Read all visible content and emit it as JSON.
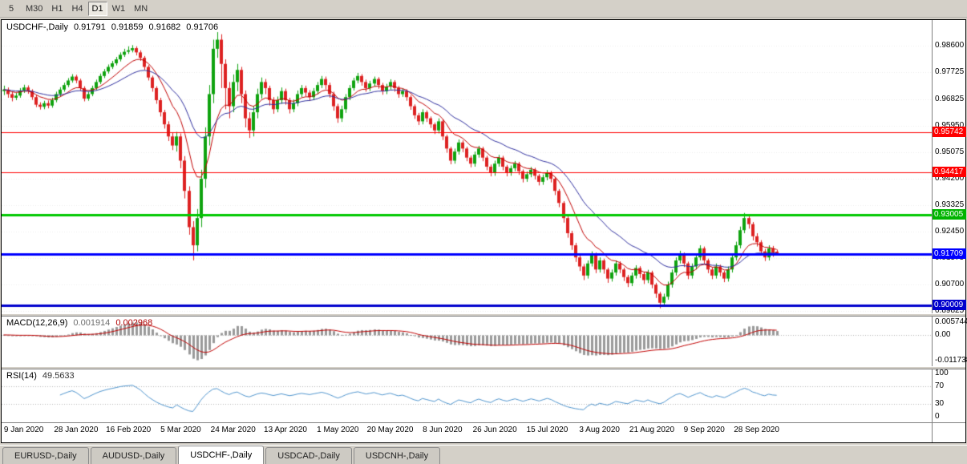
{
  "toolbar": {
    "buttons": [
      {
        "label": "5",
        "active": false
      },
      {
        "label": "M30",
        "active": false
      },
      {
        "label": "H1",
        "active": false
      },
      {
        "label": "H4",
        "active": false
      },
      {
        "label": "D1",
        "active": true
      },
      {
        "label": "W1",
        "active": false
      },
      {
        "label": "MN",
        "active": false
      }
    ]
  },
  "chart": {
    "title": "USDCHF-,Daily",
    "ohlc": {
      "open": "0.91791",
      "high": "0.91859",
      "low": "0.91682",
      "close": "0.91706"
    }
  },
  "price_axis": {
    "labels": [
      "0.98600",
      "0.97725",
      "0.96825",
      "0.95950",
      "0.95075",
      "0.94200",
      "0.93325",
      "0.92450",
      "0.91575",
      "0.90700",
      "0.89825"
    ],
    "tags": [
      {
        "value": "0.95742",
        "color": "#ff0000"
      },
      {
        "value": "0.94417",
        "color": "#ff0000"
      },
      {
        "value": "0.93005",
        "color": "#00b400"
      },
      {
        "value": "0.91709",
        "color": "#0000ff"
      },
      {
        "value": "0.90009",
        "color": "#0000cd"
      }
    ]
  },
  "macd": {
    "label": "MACD(12,26,9)",
    "value": "0.001914",
    "signal": "0.002968",
    "axis": [
      "0.005744",
      "0.00",
      "-0.011738"
    ]
  },
  "rsi": {
    "label": "RSI(14)",
    "value": "49.5633",
    "axis": [
      "100",
      "70",
      "30",
      "0"
    ]
  },
  "tabs": [
    {
      "label": "EURUSD-,Daily",
      "active": false
    },
    {
      "label": "AUDUSD-,Daily",
      "active": false
    },
    {
      "label": "USDCHF-,Daily",
      "active": true
    },
    {
      "label": "USDCAD-,Daily",
      "active": false
    },
    {
      "label": "USDCNH-,Daily",
      "active": false
    }
  ],
  "chart_data": {
    "type": "candlestick",
    "symbol": "USDCHF",
    "timeframe": "Daily",
    "title": "USDCHF-,Daily 0.91791 0.91859 0.91682 0.91706",
    "total_slots": 231,
    "price_scale": {
      "top": 0.9945,
      "bottom": 0.8975
    },
    "macd_scale": {
      "top": 0.0085,
      "bottom": -0.0145
    },
    "ma": {
      "fast": 10,
      "slow": 24
    },
    "colors": {
      "bull": "#0fa30f",
      "bear": "#dd2222",
      "ma_fast": "#c00000",
      "ma_slow": "#2f2f9e",
      "macd_hist": "#9a9a9a",
      "macd_signal": "#c00000",
      "rsi_line": "#4f94cd",
      "hline_red": "#ff0000",
      "hline_green": "#00c800",
      "hline_blue": "#0000ff"
    },
    "hlines": [
      {
        "price": 0.95742,
        "color": "#ff0000",
        "width": 1
      },
      {
        "price": 0.94417,
        "color": "#ff0000",
        "width": 1
      },
      {
        "price": 0.93005,
        "color": "#00c800",
        "width": 3
      },
      {
        "price": 0.91709,
        "color": "#0000ff",
        "width": 3
      },
      {
        "price": 0.90009,
        "color": "#0000cd",
        "width": 3
      }
    ],
    "indicator_levels": {
      "macd": [
        0.005744,
        0,
        -0.011738
      ],
      "rsi": [
        100,
        70,
        30,
        0
      ]
    },
    "date_labels": [
      {
        "text": "9 Jan 2020",
        "bar": 5
      },
      {
        "text": "28 Jan 2020",
        "bar": 18
      },
      {
        "text": "16 Feb 2020",
        "bar": 31
      },
      {
        "text": "5 Mar 2020",
        "bar": 44
      },
      {
        "text": "24 Mar 2020",
        "bar": 57
      },
      {
        "text": "13 Apr 2020",
        "bar": 70
      },
      {
        "text": "1 May 2020",
        "bar": 83
      },
      {
        "text": "20 May 2020",
        "bar": 96
      },
      {
        "text": "8 Jun 2020",
        "bar": 109
      },
      {
        "text": "26 Jun 2020",
        "bar": 122
      },
      {
        "text": "15 Jul 2020",
        "bar": 135
      },
      {
        "text": "3 Aug 2020",
        "bar": 148
      },
      {
        "text": "21 Aug 2020",
        "bar": 161
      },
      {
        "text": "9 Sep 2020",
        "bar": 174
      },
      {
        "text": "28 Sep 2020",
        "bar": 187
      }
    ],
    "candles": [
      [
        0.971,
        0.9728,
        0.9697,
        0.9715
      ],
      [
        0.9715,
        0.9722,
        0.9688,
        0.97
      ],
      [
        0.97,
        0.9707,
        0.9676,
        0.9688
      ],
      [
        0.9688,
        0.9704,
        0.968,
        0.9695
      ],
      [
        0.9695,
        0.972,
        0.9688,
        0.9712
      ],
      [
        0.9712,
        0.9731,
        0.9704,
        0.9722
      ],
      [
        0.9722,
        0.9729,
        0.9701,
        0.971
      ],
      [
        0.971,
        0.9716,
        0.9681,
        0.969
      ],
      [
        0.969,
        0.9696,
        0.9657,
        0.9665
      ],
      [
        0.9665,
        0.9673,
        0.9649,
        0.9658
      ],
      [
        0.9658,
        0.9678,
        0.965,
        0.967
      ],
      [
        0.967,
        0.9679,
        0.9653,
        0.9662
      ],
      [
        0.9662,
        0.9688,
        0.9655,
        0.968
      ],
      [
        0.968,
        0.9708,
        0.9673,
        0.97
      ],
      [
        0.97,
        0.9723,
        0.9693,
        0.9715
      ],
      [
        0.9715,
        0.9738,
        0.9708,
        0.973
      ],
      [
        0.973,
        0.9753,
        0.9723,
        0.9745
      ],
      [
        0.9745,
        0.9766,
        0.9738,
        0.9758
      ],
      [
        0.9758,
        0.9764,
        0.9736,
        0.9745
      ],
      [
        0.9745,
        0.9751,
        0.9712,
        0.972
      ],
      [
        0.972,
        0.9726,
        0.9676,
        0.9685
      ],
      [
        0.9685,
        0.9708,
        0.9678,
        0.97
      ],
      [
        0.97,
        0.9728,
        0.9693,
        0.972
      ],
      [
        0.972,
        0.9748,
        0.9713,
        0.974
      ],
      [
        0.974,
        0.9768,
        0.9733,
        0.976
      ],
      [
        0.976,
        0.9783,
        0.9753,
        0.9775
      ],
      [
        0.9775,
        0.9798,
        0.9768,
        0.979
      ],
      [
        0.979,
        0.981,
        0.9783,
        0.9802
      ],
      [
        0.9802,
        0.9823,
        0.9795,
        0.9815
      ],
      [
        0.9815,
        0.9838,
        0.9808,
        0.983
      ],
      [
        0.983,
        0.985,
        0.9823,
        0.984
      ],
      [
        0.984,
        0.9858,
        0.9833,
        0.9845
      ],
      [
        0.9845,
        0.9862,
        0.9838,
        0.9852
      ],
      [
        0.9852,
        0.9858,
        0.9828,
        0.9838
      ],
      [
        0.9838,
        0.9845,
        0.981,
        0.982
      ],
      [
        0.982,
        0.9826,
        0.978,
        0.979
      ],
      [
        0.979,
        0.9796,
        0.9745,
        0.9755
      ],
      [
        0.9755,
        0.9761,
        0.9708,
        0.972
      ],
      [
        0.972,
        0.9726,
        0.9668,
        0.968
      ],
      [
        0.968,
        0.9688,
        0.9626,
        0.964
      ],
      [
        0.964,
        0.9648,
        0.9586,
        0.96
      ],
      [
        0.96,
        0.961,
        0.9545,
        0.956
      ],
      [
        0.956,
        0.9572,
        0.9515,
        0.953
      ],
      [
        0.953,
        0.9575,
        0.951,
        0.956
      ],
      [
        0.956,
        0.957,
        0.9455,
        0.948
      ],
      [
        0.948,
        0.9495,
        0.9355,
        0.938
      ],
      [
        0.938,
        0.9395,
        0.9235,
        0.926
      ],
      [
        0.926,
        0.928,
        0.915,
        0.92
      ],
      [
        0.92,
        0.932,
        0.918,
        0.929
      ],
      [
        0.929,
        0.945,
        0.926,
        0.942
      ],
      [
        0.942,
        0.959,
        0.939,
        0.956
      ],
      [
        0.956,
        0.973,
        0.953,
        0.97
      ],
      [
        0.97,
        0.988,
        0.967,
        0.985
      ],
      [
        0.985,
        0.9905,
        0.982,
        0.988
      ],
      [
        0.988,
        0.9898,
        0.972,
        0.98
      ],
      [
        0.98,
        0.9815,
        0.965,
        0.972
      ],
      [
        0.972,
        0.974,
        0.962,
        0.966
      ],
      [
        0.966,
        0.9765,
        0.964,
        0.974
      ],
      [
        0.974,
        0.98,
        0.971,
        0.978
      ],
      [
        0.978,
        0.979,
        0.967,
        0.97
      ],
      [
        0.97,
        0.9712,
        0.959,
        0.962
      ],
      [
        0.962,
        0.964,
        0.9555,
        0.958
      ],
      [
        0.958,
        0.966,
        0.956,
        0.964
      ],
      [
        0.964,
        0.9718,
        0.962,
        0.97
      ],
      [
        0.97,
        0.9755,
        0.9685,
        0.974
      ],
      [
        0.974,
        0.975,
        0.97,
        0.972
      ],
      [
        0.972,
        0.9728,
        0.9662,
        0.968
      ],
      [
        0.968,
        0.969,
        0.9635,
        0.965
      ],
      [
        0.965,
        0.9692,
        0.964,
        0.968
      ],
      [
        0.968,
        0.9722,
        0.9668,
        0.971
      ],
      [
        0.971,
        0.9718,
        0.9665,
        0.968
      ],
      [
        0.968,
        0.9688,
        0.9636,
        0.965
      ],
      [
        0.965,
        0.9682,
        0.964,
        0.967
      ],
      [
        0.967,
        0.9712,
        0.966,
        0.97
      ],
      [
        0.97,
        0.973,
        0.969,
        0.972
      ],
      [
        0.972,
        0.9728,
        0.9693,
        0.9705
      ],
      [
        0.9705,
        0.9713,
        0.9678,
        0.969
      ],
      [
        0.969,
        0.972,
        0.968,
        0.971
      ],
      [
        0.971,
        0.974,
        0.97,
        0.973
      ],
      [
        0.973,
        0.976,
        0.972,
        0.975
      ],
      [
        0.975,
        0.9758,
        0.9716,
        0.973
      ],
      [
        0.973,
        0.9738,
        0.9688,
        0.97
      ],
      [
        0.97,
        0.9708,
        0.9645,
        0.966
      ],
      [
        0.966,
        0.9668,
        0.9605,
        0.962
      ],
      [
        0.962,
        0.9662,
        0.9608,
        0.965
      ],
      [
        0.965,
        0.97,
        0.9638,
        0.969
      ],
      [
        0.969,
        0.973,
        0.968,
        0.972
      ],
      [
        0.972,
        0.9754,
        0.9712,
        0.9745
      ],
      [
        0.9745,
        0.977,
        0.9736,
        0.976
      ],
      [
        0.976,
        0.9766,
        0.9728,
        0.974
      ],
      [
        0.974,
        0.9748,
        0.9708,
        0.972
      ],
      [
        0.972,
        0.9744,
        0.971,
        0.9735
      ],
      [
        0.9735,
        0.9758,
        0.9725,
        0.975
      ],
      [
        0.975,
        0.9756,
        0.9718,
        0.973
      ],
      [
        0.973,
        0.9737,
        0.9698,
        0.971
      ],
      [
        0.971,
        0.9734,
        0.97,
        0.9725
      ],
      [
        0.9725,
        0.9749,
        0.9715,
        0.974
      ],
      [
        0.974,
        0.9746,
        0.9708,
        0.972
      ],
      [
        0.972,
        0.9727,
        0.9688,
        0.97
      ],
      [
        0.97,
        0.9719,
        0.9691,
        0.971
      ],
      [
        0.971,
        0.9716,
        0.9678,
        0.969
      ],
      [
        0.969,
        0.9696,
        0.9648,
        0.966
      ],
      [
        0.966,
        0.9666,
        0.9618,
        0.963
      ],
      [
        0.963,
        0.9638,
        0.9598,
        0.961
      ],
      [
        0.961,
        0.965,
        0.96,
        0.964
      ],
      [
        0.964,
        0.9646,
        0.9608,
        0.962
      ],
      [
        0.962,
        0.9626,
        0.9588,
        0.96
      ],
      [
        0.96,
        0.9606,
        0.9568,
        0.958
      ],
      [
        0.958,
        0.962,
        0.957,
        0.961
      ],
      [
        0.961,
        0.9616,
        0.9548,
        0.956
      ],
      [
        0.956,
        0.9566,
        0.9506,
        0.952
      ],
      [
        0.952,
        0.9526,
        0.9468,
        0.948
      ],
      [
        0.948,
        0.952,
        0.947,
        0.951
      ],
      [
        0.951,
        0.955,
        0.95,
        0.954
      ],
      [
        0.954,
        0.9547,
        0.9508,
        0.952
      ],
      [
        0.952,
        0.9526,
        0.9478,
        0.949
      ],
      [
        0.949,
        0.9497,
        0.9458,
        0.947
      ],
      [
        0.947,
        0.951,
        0.946,
        0.95
      ],
      [
        0.95,
        0.9529,
        0.949,
        0.952
      ],
      [
        0.952,
        0.9526,
        0.9478,
        0.949
      ],
      [
        0.949,
        0.9496,
        0.9448,
        0.946
      ],
      [
        0.946,
        0.9467,
        0.9428,
        0.944
      ],
      [
        0.944,
        0.948,
        0.943,
        0.947
      ],
      [
        0.947,
        0.9499,
        0.946,
        0.949
      ],
      [
        0.949,
        0.9496,
        0.9448,
        0.946
      ],
      [
        0.946,
        0.9466,
        0.9428,
        0.944
      ],
      [
        0.944,
        0.9464,
        0.943,
        0.9455
      ],
      [
        0.9455,
        0.9479,
        0.9445,
        0.947
      ],
      [
        0.947,
        0.9476,
        0.9433,
        0.9445
      ],
      [
        0.9445,
        0.9451,
        0.9408,
        0.942
      ],
      [
        0.942,
        0.9444,
        0.941,
        0.9435
      ],
      [
        0.9435,
        0.9459,
        0.9425,
        0.945
      ],
      [
        0.945,
        0.9456,
        0.9418,
        0.943
      ],
      [
        0.943,
        0.9436,
        0.9398,
        0.941
      ],
      [
        0.941,
        0.9434,
        0.94,
        0.9425
      ],
      [
        0.9425,
        0.9449,
        0.9415,
        0.944
      ],
      [
        0.944,
        0.9446,
        0.9408,
        0.942
      ],
      [
        0.942,
        0.9426,
        0.9366,
        0.938
      ],
      [
        0.938,
        0.9386,
        0.9326,
        0.934
      ],
      [
        0.934,
        0.9346,
        0.9275,
        0.929
      ],
      [
        0.929,
        0.9296,
        0.9225,
        0.924
      ],
      [
        0.924,
        0.9248,
        0.9185,
        0.92
      ],
      [
        0.92,
        0.9208,
        0.9145,
        0.916
      ],
      [
        0.916,
        0.9168,
        0.9115,
        0.913
      ],
      [
        0.913,
        0.9138,
        0.9085,
        0.91
      ],
      [
        0.91,
        0.915,
        0.909,
        0.914
      ],
      [
        0.914,
        0.918,
        0.913,
        0.917
      ],
      [
        0.917,
        0.9176,
        0.9108,
        0.912
      ],
      [
        0.912,
        0.916,
        0.911,
        0.915
      ],
      [
        0.915,
        0.9156,
        0.9106,
        0.912
      ],
      [
        0.912,
        0.9126,
        0.9076,
        0.909
      ],
      [
        0.909,
        0.912,
        0.908,
        0.911
      ],
      [
        0.911,
        0.915,
        0.91,
        0.914
      ],
      [
        0.914,
        0.9147,
        0.9108,
        0.912
      ],
      [
        0.912,
        0.9126,
        0.9082,
        0.9095
      ],
      [
        0.9095,
        0.9102,
        0.9062,
        0.9075
      ],
      [
        0.9075,
        0.911,
        0.9065,
        0.91
      ],
      [
        0.91,
        0.9134,
        0.909,
        0.9125
      ],
      [
        0.9125,
        0.9131,
        0.9092,
        0.9105
      ],
      [
        0.9105,
        0.9111,
        0.9072,
        0.9085
      ],
      [
        0.9085,
        0.9119,
        0.9075,
        0.911
      ],
      [
        0.911,
        0.9116,
        0.9058,
        0.907
      ],
      [
        0.907,
        0.9076,
        0.9026,
        0.904
      ],
      [
        0.904,
        0.9046,
        0.8992,
        0.901
      ],
      [
        0.901,
        0.904,
        0.9,
        0.903
      ],
      [
        0.903,
        0.908,
        0.902,
        0.907
      ],
      [
        0.907,
        0.912,
        0.906,
        0.911
      ],
      [
        0.911,
        0.916,
        0.91,
        0.915
      ],
      [
        0.915,
        0.9182,
        0.914,
        0.917
      ],
      [
        0.917,
        0.9176,
        0.9128,
        0.914
      ],
      [
        0.914,
        0.9146,
        0.9088,
        0.91
      ],
      [
        0.91,
        0.914,
        0.909,
        0.913
      ],
      [
        0.913,
        0.917,
        0.912,
        0.916
      ],
      [
        0.916,
        0.92,
        0.915,
        0.919
      ],
      [
        0.919,
        0.9196,
        0.9138,
        0.915
      ],
      [
        0.915,
        0.9156,
        0.9108,
        0.912
      ],
      [
        0.912,
        0.9127,
        0.9088,
        0.91
      ],
      [
        0.91,
        0.914,
        0.909,
        0.913
      ],
      [
        0.913,
        0.9136,
        0.9098,
        0.911
      ],
      [
        0.911,
        0.9116,
        0.9078,
        0.909
      ],
      [
        0.909,
        0.913,
        0.908,
        0.912
      ],
      [
        0.912,
        0.917,
        0.911,
        0.916
      ],
      [
        0.916,
        0.9212,
        0.915,
        0.92
      ],
      [
        0.92,
        0.9262,
        0.919,
        0.925
      ],
      [
        0.925,
        0.9307,
        0.924,
        0.929
      ],
      [
        0.929,
        0.9298,
        0.9255,
        0.927
      ],
      [
        0.927,
        0.9277,
        0.9216,
        0.923
      ],
      [
        0.923,
        0.924,
        0.9196,
        0.921
      ],
      [
        0.921,
        0.9217,
        0.9166,
        0.918
      ],
      [
        0.918,
        0.9188,
        0.9148,
        0.916
      ],
      [
        0.916,
        0.92,
        0.915,
        0.919
      ],
      [
        0.919,
        0.9198,
        0.9162,
        0.9175
      ],
      [
        0.91791,
        0.91859,
        0.91682,
        0.91706
      ]
    ]
  }
}
